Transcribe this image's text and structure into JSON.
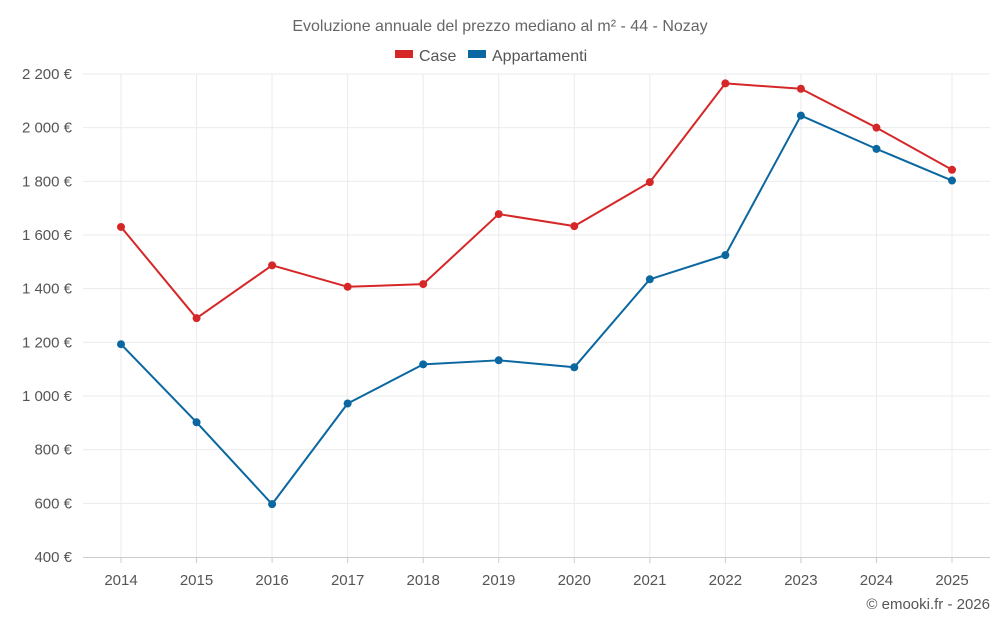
{
  "chart_data": {
    "type": "line",
    "title": "Evoluzione annuale del prezzo mediano al m² - 44 - Nozay",
    "categories": [
      "2014",
      "2015",
      "2016",
      "2017",
      "2018",
      "2019",
      "2020",
      "2021",
      "2022",
      "2023",
      "2024",
      "2025"
    ],
    "series": [
      {
        "name": "Case",
        "color": "#d62728",
        "values": [
          1630,
          1290,
          1487,
          1407,
          1417,
          1678,
          1633,
          1797,
          2165,
          2145,
          2000,
          1843
        ]
      },
      {
        "name": "Appartamenti",
        "color": "#0b67a0",
        "values": [
          1193,
          902,
          597,
          972,
          1118,
          1133,
          1107,
          1435,
          1525,
          2045,
          1921,
          1803
        ]
      }
    ],
    "ylim": [
      400,
      2200
    ],
    "yticks": [
      400,
      600,
      800,
      1000,
      1200,
      1400,
      1600,
      1800,
      2000,
      2200
    ],
    "ytick_labels": [
      "400 €",
      "600 €",
      "800 €",
      "1 000 €",
      "1 200 €",
      "1 400 €",
      "1 600 €",
      "1 800 €",
      "2 000 €",
      "2 200 €"
    ],
    "xlabel": "",
    "ylabel": "",
    "legend_position": "top-center",
    "grid": true
  },
  "credit": "© emooki.fr - 2026"
}
